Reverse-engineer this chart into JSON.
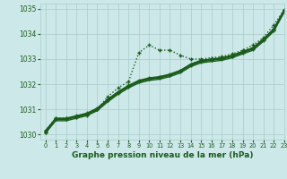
{
  "title": "Graphe pression niveau de la mer (hPa)",
  "bg_color": "#cce8e8",
  "grid_color": "#aacccc",
  "line_color": "#1a5c1a",
  "xlim": [
    -0.5,
    23
  ],
  "ylim": [
    1029.8,
    1035.2
  ],
  "yticks": [
    1030,
    1031,
    1032,
    1033,
    1034,
    1035
  ],
  "xticks": [
    0,
    1,
    2,
    3,
    4,
    5,
    6,
    7,
    8,
    9,
    10,
    11,
    12,
    13,
    14,
    15,
    16,
    17,
    18,
    19,
    20,
    21,
    22,
    23
  ],
  "series": [
    {
      "y": [
        1030.15,
        1030.65,
        1030.65,
        1030.7,
        1030.75,
        1031.0,
        1031.5,
        1031.85,
        1032.1,
        1033.25,
        1033.55,
        1033.35,
        1033.35,
        1033.15,
        1033.0,
        1033.0,
        1033.05,
        1033.1,
        1033.2,
        1033.35,
        1033.55,
        1033.85,
        1034.35,
        1034.95
      ],
      "linestyle": "dotted",
      "linewidth": 1.0,
      "marker": true
    },
    {
      "y": [
        1030.15,
        1030.65,
        1030.65,
        1030.75,
        1030.85,
        1031.05,
        1031.4,
        1031.7,
        1031.95,
        1032.15,
        1032.25,
        1032.3,
        1032.4,
        1032.55,
        1032.8,
        1032.95,
        1033.0,
        1033.05,
        1033.15,
        1033.3,
        1033.45,
        1033.8,
        1034.2,
        1034.95
      ],
      "linestyle": "solid",
      "linewidth": 1.0,
      "marker": true
    },
    {
      "y": [
        1030.1,
        1030.6,
        1030.6,
        1030.7,
        1030.8,
        1031.0,
        1031.35,
        1031.65,
        1031.9,
        1032.1,
        1032.2,
        1032.25,
        1032.35,
        1032.5,
        1032.75,
        1032.9,
        1032.95,
        1033.0,
        1033.1,
        1033.25,
        1033.4,
        1033.75,
        1034.15,
        1034.9
      ],
      "linestyle": "solid",
      "linewidth": 1.0,
      "marker": true
    },
    {
      "y": [
        1030.05,
        1030.55,
        1030.55,
        1030.65,
        1030.75,
        1030.95,
        1031.3,
        1031.6,
        1031.85,
        1032.05,
        1032.15,
        1032.2,
        1032.3,
        1032.45,
        1032.7,
        1032.85,
        1032.9,
        1032.95,
        1033.05,
        1033.2,
        1033.35,
        1033.7,
        1034.1,
        1034.85
      ],
      "linestyle": "solid",
      "linewidth": 1.0,
      "marker": false
    },
    {
      "y": [
        1030.1,
        1030.62,
        1030.62,
        1030.72,
        1030.82,
        1031.02,
        1031.38,
        1031.68,
        1031.92,
        1032.12,
        1032.22,
        1032.27,
        1032.37,
        1032.52,
        1032.77,
        1032.92,
        1032.97,
        1033.02,
        1033.12,
        1033.27,
        1033.42,
        1033.77,
        1034.17,
        1034.92
      ],
      "linestyle": "solid",
      "linewidth": 1.3,
      "marker": true
    }
  ]
}
